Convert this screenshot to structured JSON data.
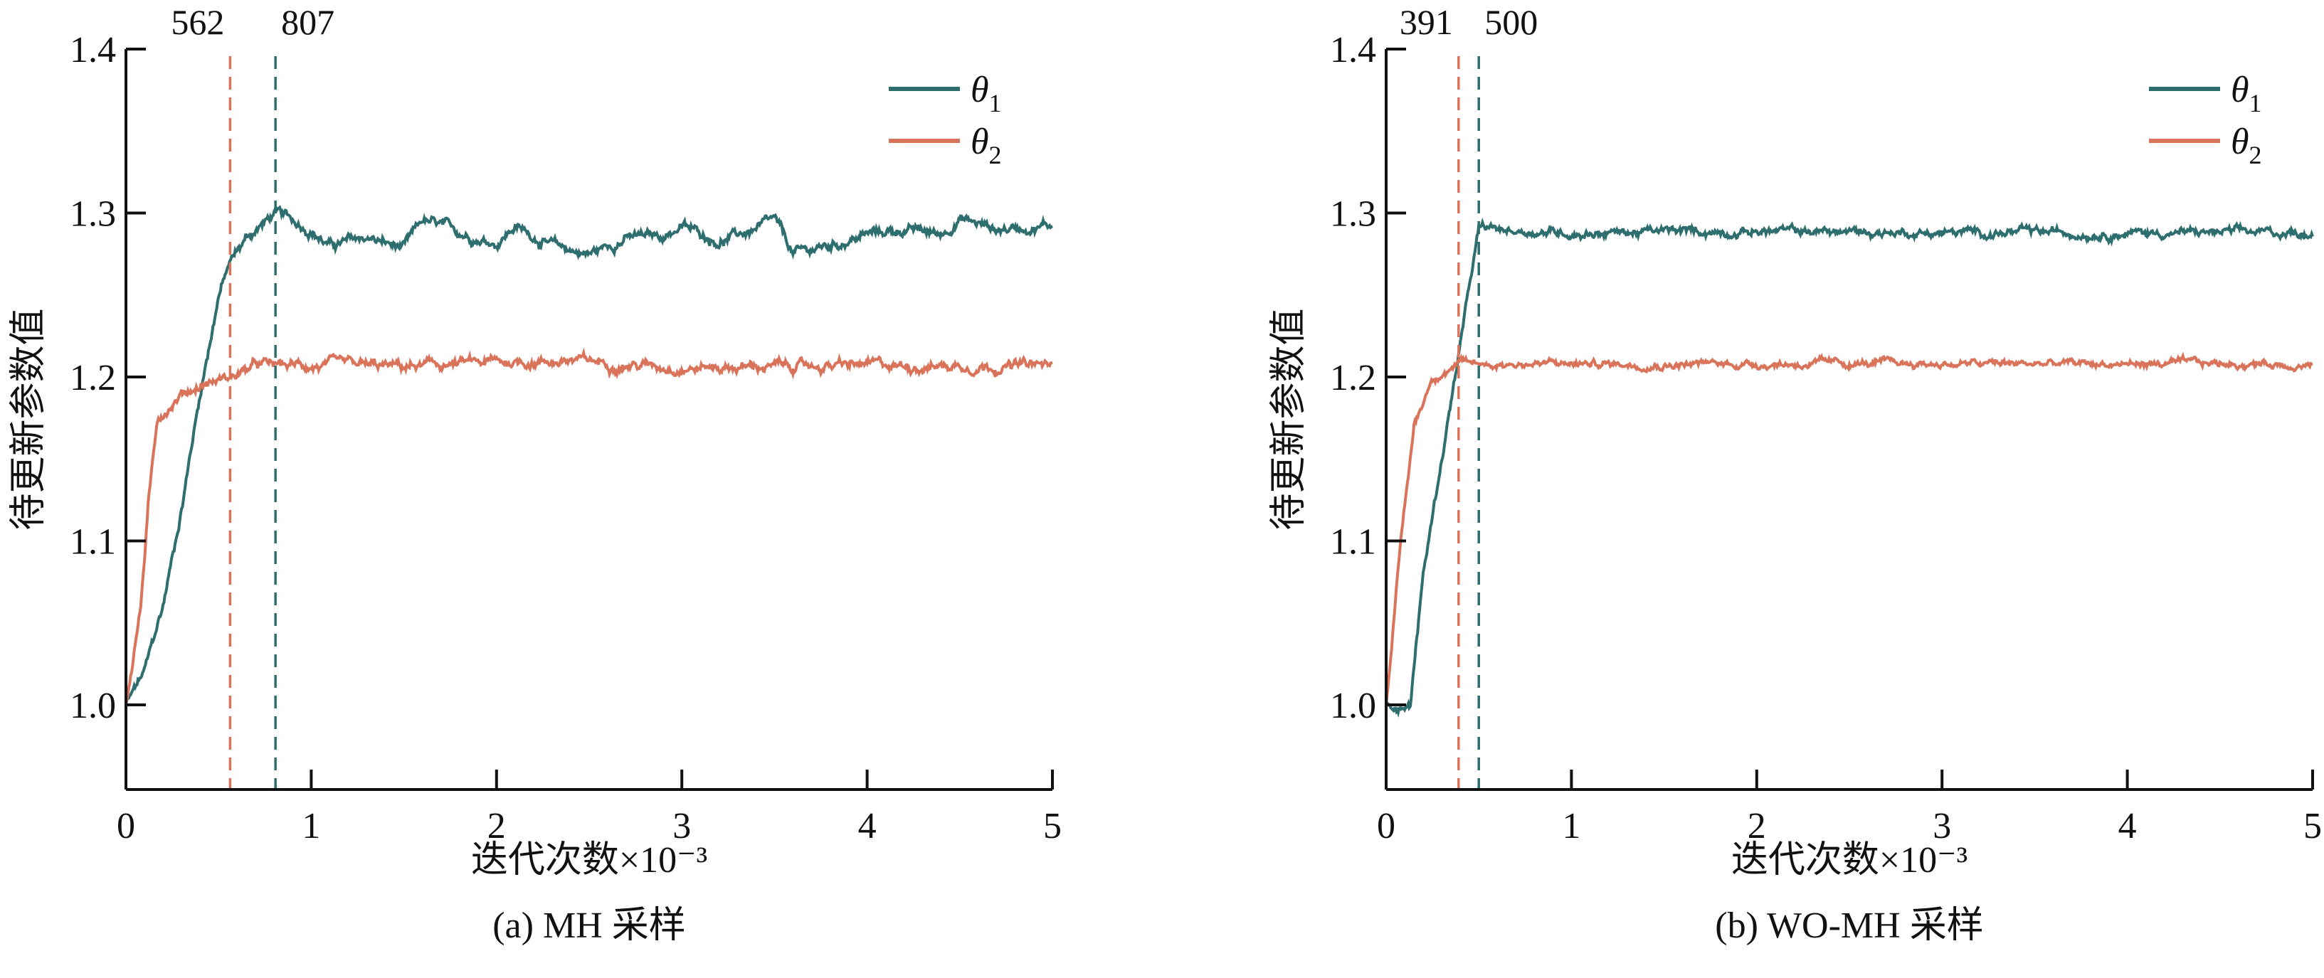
{
  "colors": {
    "theta1": "#2e6e6e",
    "theta2": "#d9735a",
    "axis": "#111111"
  },
  "chart_data": [
    {
      "type": "line",
      "caption": "(a) MH 采样",
      "xlabel": "迭代次数×10⁻³",
      "ylabel": "待更新参数值",
      "xlim": [
        0,
        5000
      ],
      "ylim": [
        0.95,
        1.4
      ],
      "xticks": [
        0,
        1000,
        2000,
        3000,
        4000,
        5000
      ],
      "xtick_labels": [
        "0",
        "1",
        "2",
        "3",
        "4",
        "5"
      ],
      "yticks": [
        1.0,
        1.1,
        1.2,
        1.3,
        1.4
      ],
      "ytick_labels": [
        "1.0",
        "1.1",
        "1.2",
        "1.3",
        "1.4"
      ],
      "legend": {
        "position": "top-right",
        "entries": [
          "θ1",
          "θ2"
        ]
      },
      "vlines": [
        {
          "x": 562,
          "label": "562",
          "series": "theta2"
        },
        {
          "x": 807,
          "label": "807",
          "series": "theta1"
        }
      ],
      "series": [
        {
          "name": "θ1",
          "key": "theta1",
          "noise": 0.003,
          "points": [
            [
              0,
              1.0
            ],
            [
              100,
              1.02
            ],
            [
              200,
              1.06
            ],
            [
              300,
              1.12
            ],
            [
              400,
              1.19
            ],
            [
              500,
              1.25
            ],
            [
              562,
              1.27
            ],
            [
              650,
              1.285
            ],
            [
              807,
              1.3
            ],
            [
              900,
              1.295
            ],
            [
              1000,
              1.29
            ],
            [
              1100,
              1.28
            ],
            [
              1300,
              1.285
            ],
            [
              1500,
              1.278
            ],
            [
              1600,
              1.295
            ],
            [
              1800,
              1.288
            ],
            [
              2000,
              1.282
            ],
            [
              2100,
              1.292
            ],
            [
              2300,
              1.28
            ],
            [
              2500,
              1.275
            ],
            [
              2700,
              1.285
            ],
            [
              2900,
              1.286
            ],
            [
              3000,
              1.292
            ],
            [
              3200,
              1.283
            ],
            [
              3400,
              1.29
            ],
            [
              3500,
              1.295
            ],
            [
              3600,
              1.275
            ],
            [
              3800,
              1.28
            ],
            [
              4000,
              1.287
            ],
            [
              4200,
              1.29
            ],
            [
              4400,
              1.287
            ],
            [
              4500,
              1.297
            ],
            [
              4700,
              1.29
            ],
            [
              5000,
              1.293
            ]
          ]
        },
        {
          "name": "θ2",
          "key": "theta2",
          "noise": 0.003,
          "points": [
            [
              0,
              1.0
            ],
            [
              80,
              1.06
            ],
            [
              120,
              1.12
            ],
            [
              170,
              1.175
            ],
            [
              300,
              1.19
            ],
            [
              450,
              1.197
            ],
            [
              562,
              1.2
            ],
            [
              700,
              1.207
            ],
            [
              1000,
              1.207
            ],
            [
              1500,
              1.206
            ],
            [
              2000,
              1.209
            ],
            [
              2400,
              1.21
            ],
            [
              3000,
              1.206
            ],
            [
              4000,
              1.207
            ],
            [
              5000,
              1.207
            ]
          ]
        }
      ]
    },
    {
      "type": "line",
      "caption": "(b) WO-MH 采样",
      "xlabel": "迭代次数×10⁻³",
      "ylabel": "待更新参数值",
      "xlim": [
        0,
        5000
      ],
      "ylim": [
        0.95,
        1.4
      ],
      "xticks": [
        0,
        1000,
        2000,
        3000,
        4000,
        5000
      ],
      "xtick_labels": [
        "0",
        "1",
        "2",
        "3",
        "4",
        "5"
      ],
      "yticks": [
        1.0,
        1.1,
        1.2,
        1.3,
        1.4
      ],
      "ytick_labels": [
        "1.0",
        "1.1",
        "1.2",
        "1.3",
        "1.4"
      ],
      "legend": {
        "position": "top-right",
        "entries": [
          "θ1",
          "θ2"
        ]
      },
      "vlines": [
        {
          "x": 391,
          "label": "391",
          "series": "theta2"
        },
        {
          "x": 500,
          "label": "500",
          "series": "theta1"
        }
      ],
      "series": [
        {
          "name": "θ1",
          "key": "theta1",
          "noise": 0.0025,
          "points": [
            [
              0,
              1.0
            ],
            [
              130,
              1.0
            ],
            [
              200,
              1.08
            ],
            [
              300,
              1.15
            ],
            [
              400,
              1.22
            ],
            [
              500,
              1.29
            ],
            [
              1000,
              1.288
            ],
            [
              2000,
              1.289
            ],
            [
              3000,
              1.288
            ],
            [
              4000,
              1.288
            ],
            [
              5000,
              1.288
            ]
          ]
        },
        {
          "name": "θ2",
          "key": "theta2",
          "noise": 0.0022,
          "points": [
            [
              0,
              1.0
            ],
            [
              80,
              1.1
            ],
            [
              150,
              1.17
            ],
            [
              250,
              1.2
            ],
            [
              391,
              1.208
            ],
            [
              1000,
              1.208
            ],
            [
              3000,
              1.208
            ],
            [
              5000,
              1.208
            ]
          ]
        }
      ]
    }
  ]
}
